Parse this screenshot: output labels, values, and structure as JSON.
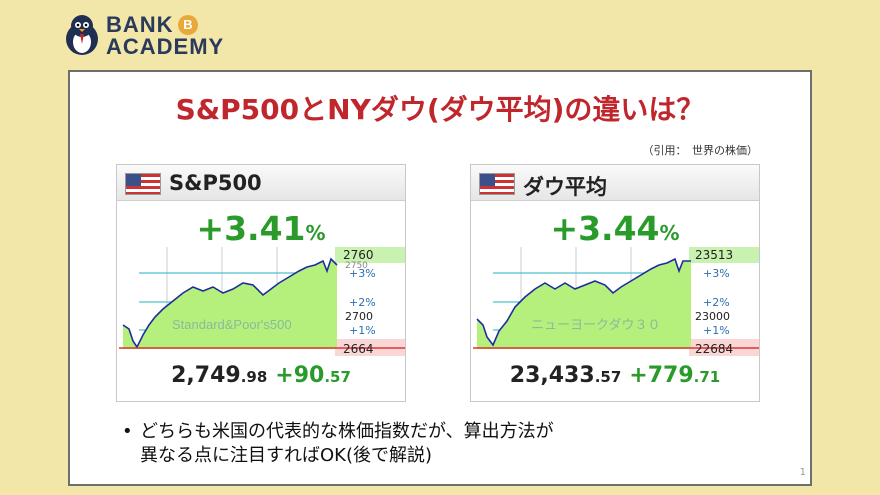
{
  "brand": {
    "line1": "BANK",
    "coin": "B",
    "line2": "ACADEMY",
    "mascot_icon": "penguin-mascot-icon"
  },
  "slide": {
    "title": "S&P500とNYダウ(ダウ平均)の違いは？",
    "citation": "（引用：　世界の株価）",
    "bullet_line1": "どちらも米国の代表的な株価指数だが、算出方法が",
    "bullet_line2": "異なる点に注目すればOK(後で解説)",
    "page_number": "1"
  },
  "colors": {
    "accent_red": "#c0272d",
    "up_green": "#2a9a2a",
    "area_fill": "#b6f07c",
    "line": "#1c2e9c"
  },
  "cards": [
    {
      "name": "S&P500",
      "change_pct": "+3.41",
      "pct_unit": "%",
      "price_int": "2,749",
      "price_dec": ".98",
      "change_int": "+90",
      "change_dec": ".57",
      "watermark": "Standard&Poor's500",
      "labels": [
        "2760",
        "2750",
        "+3%",
        "+2%",
        "2700",
        "+1%",
        "2664"
      ]
    },
    {
      "name": "ダウ平均",
      "change_pct": "+3.44",
      "pct_unit": "%",
      "price_int": "23,433",
      "price_dec": ".57",
      "change_int": "+779",
      "change_dec": ".71",
      "watermark": "ニューヨークダウ３０",
      "labels": [
        "23513",
        "+3%",
        "+2%",
        "23000",
        "+1%",
        "22684"
      ]
    }
  ]
}
